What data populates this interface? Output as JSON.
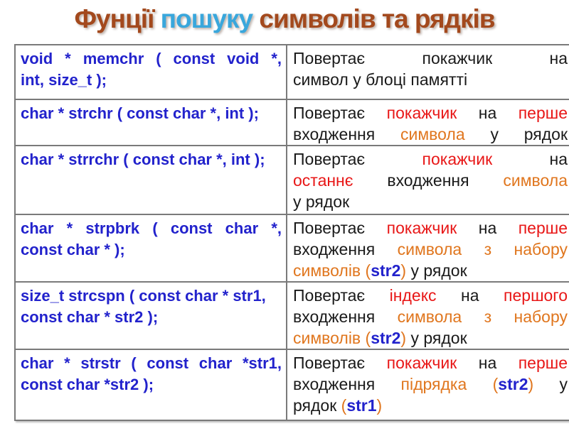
{
  "colors": {
    "brown": "#A3491D",
    "light_blue": "#39A7DC",
    "code_blue": "#2222CC",
    "red": "#E81717",
    "orange": "#E0761E",
    "black": "#1A1A1A",
    "border": "#7A7A7A"
  },
  "title": {
    "parts": [
      {
        "text": "Фунції",
        "color": "brown"
      },
      {
        "text": "пошуку",
        "color": "light_blue"
      },
      {
        "text": "символів та рядків",
        "color": "brown"
      }
    ]
  },
  "table": {
    "rows": [
      {
        "function": "memchr",
        "signature": [
          {
            "text": "void * memchr ( const void *,",
            "fill": true
          },
          {
            "text": "int, size_t );",
            "fill": false
          }
        ],
        "description": [
          {
            "fill": true,
            "tokens": [
              {
                "t": "Повертає",
                "color": "black"
              },
              {
                "t": "покажчик",
                "color": "black"
              },
              {
                "t": "на",
                "color": "black"
              }
            ]
          },
          {
            "fill": false,
            "tokens": [
              {
                "t": "символ у блоці памятті",
                "color": "black"
              }
            ]
          }
        ]
      },
      {
        "function": "strchr",
        "signature": [
          {
            "text": "char * strchr ( const char *, int );",
            "fill": false
          }
        ],
        "description": [
          {
            "fill": true,
            "tokens": [
              {
                "t": "Повертає",
                "color": "black"
              },
              {
                "t": "покажчик",
                "color": "red"
              },
              {
                "t": "на",
                "color": "black"
              },
              {
                "t": "перше",
                "color": "red"
              }
            ]
          },
          {
            "fill": true,
            "tokens": [
              {
                "t": "входження",
                "color": "black"
              },
              {
                "t": "символа",
                "color": "orange"
              },
              {
                "t": "у рядок",
                "color": "black"
              }
            ]
          }
        ]
      },
      {
        "function": "strrchr",
        "signature": [
          {
            "text": "char * strrchr ( const char *, int );",
            "fill": false
          }
        ],
        "description": [
          {
            "fill": true,
            "tokens": [
              {
                "t": "Повертає",
                "color": "black"
              },
              {
                "t": "покажчик",
                "color": "red"
              },
              {
                "t": "на",
                "color": "black"
              }
            ]
          },
          {
            "fill": true,
            "tokens": [
              {
                "t": "останнє",
                "color": "red"
              },
              {
                "t": "входження",
                "color": "black"
              },
              {
                "t": "символа",
                "color": "orange"
              }
            ]
          },
          {
            "fill": false,
            "tokens": [
              {
                "t": "у рядок",
                "color": "black"
              }
            ]
          }
        ]
      },
      {
        "function": "strpbrk",
        "signature": [
          {
            "text": "char * strpbrk ( const char *,",
            "fill": true
          },
          {
            "text": "const char * );",
            "fill": false
          }
        ],
        "description": [
          {
            "fill": true,
            "tokens": [
              {
                "t": "Повертає",
                "color": "black"
              },
              {
                "t": "покажчик",
                "color": "red"
              },
              {
                "t": "на",
                "color": "black"
              },
              {
                "t": "перше",
                "color": "red"
              }
            ]
          },
          {
            "fill": true,
            "tokens": [
              {
                "t": "входження",
                "color": "black"
              },
              {
                "t": "символа з набору",
                "color": "orange"
              }
            ]
          },
          {
            "fill": false,
            "tokens": [
              {
                "t": "символів",
                "color": "orange"
              },
              {
                "t": "(",
                "color": "orange"
              },
              {
                "t": "str2",
                "color": "code_blue",
                "bold": true,
                "ns": true
              },
              {
                "t": ")",
                "color": "orange",
                "ns": true
              },
              {
                "t": "у рядок",
                "color": "black"
              }
            ]
          }
        ]
      },
      {
        "function": "strcspn",
        "signature": [
          {
            "text": "size_t strcspn ( const char * str1,",
            "fill": false
          },
          {
            "text": "const char * str2 );",
            "fill": false
          }
        ],
        "description": [
          {
            "fill": true,
            "tokens": [
              {
                "t": "Повертає",
                "color": "black"
              },
              {
                "t": "індекс",
                "color": "red"
              },
              {
                "t": "на",
                "color": "black"
              },
              {
                "t": "першого",
                "color": "red"
              }
            ]
          },
          {
            "fill": true,
            "tokens": [
              {
                "t": "входження",
                "color": "black"
              },
              {
                "t": "символа з набору",
                "color": "orange"
              }
            ]
          },
          {
            "fill": false,
            "tokens": [
              {
                "t": "символів",
                "color": "orange"
              },
              {
                "t": "(",
                "color": "orange"
              },
              {
                "t": "str2",
                "color": "code_blue",
                "bold": true,
                "ns": true
              },
              {
                "t": ")",
                "color": "orange",
                "ns": true
              },
              {
                "t": "у рядок",
                "color": "black"
              }
            ]
          }
        ]
      },
      {
        "function": "strstr",
        "signature": [
          {
            "text": "char * strstr ( const char *str1,",
            "fill": true
          },
          {
            "text": "const char *str2 );",
            "fill": false
          }
        ],
        "description": [
          {
            "fill": true,
            "tokens": [
              {
                "t": "Повертає",
                "color": "black"
              },
              {
                "t": "покажчик",
                "color": "red"
              },
              {
                "t": "на",
                "color": "black"
              },
              {
                "t": "перше",
                "color": "red"
              }
            ]
          },
          {
            "fill": true,
            "tokens": [
              {
                "t": "входження",
                "color": "black"
              },
              {
                "t": "підрядка",
                "color": "orange"
              },
              {
                "t": "(",
                "color": "orange"
              },
              {
                "t": "str2",
                "color": "code_blue",
                "bold": true,
                "ns": true
              },
              {
                "t": ")",
                "color": "orange",
                "ns": true
              },
              {
                "t": "у",
                "color": "black"
              }
            ]
          },
          {
            "fill": false,
            "tokens": [
              {
                "t": "рядок",
                "color": "black"
              },
              {
                "t": "(",
                "color": "orange"
              },
              {
                "t": "str1",
                "color": "code_blue",
                "bold": true,
                "ns": true
              },
              {
                "t": ")",
                "color": "orange",
                "ns": true
              }
            ]
          }
        ]
      }
    ]
  }
}
